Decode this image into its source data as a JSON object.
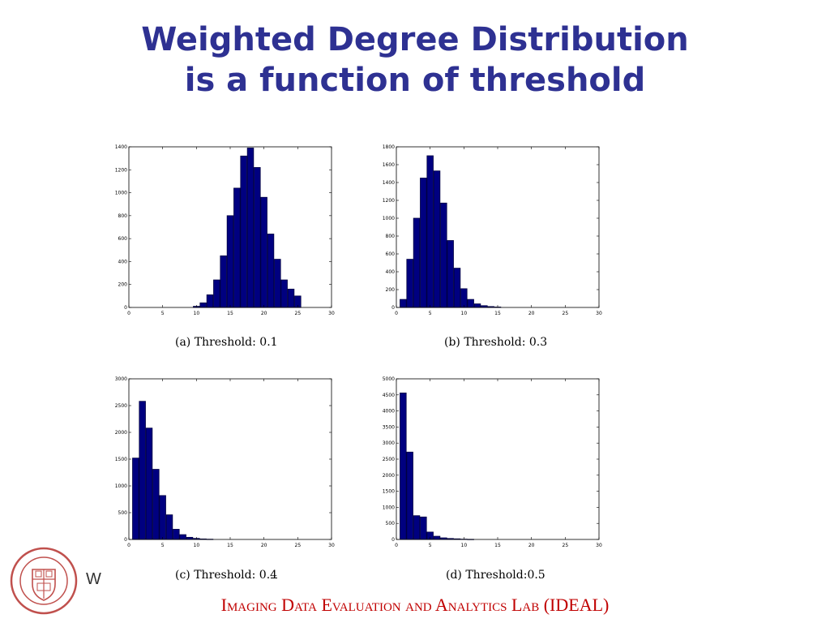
{
  "title": {
    "line1": "Weighted Degree Distribution",
    "line2": "is a function of threshold"
  },
  "footer": {
    "text": "Imaging Data Evaluation and Analytics Lab (IDEAL)"
  },
  "side_letter": "W",
  "logo": {
    "name": "university-seal",
    "color": "#c0504d"
  },
  "chart_data": [
    {
      "type": "bar",
      "caption": "(a) Threshold: 0.1",
      "xlim": [
        0,
        30
      ],
      "ylim": [
        0,
        1400
      ],
      "xticks": [
        0,
        5,
        10,
        15,
        20,
        25,
        30
      ],
      "yticks": [
        0,
        200,
        400,
        600,
        800,
        1000,
        1200,
        1400
      ],
      "x": [
        10,
        11,
        12,
        13,
        14,
        15,
        16,
        17,
        18,
        19,
        20,
        21,
        22,
        23,
        24,
        25
      ],
      "values": [
        10,
        40,
        110,
        240,
        450,
        800,
        1040,
        1320,
        1390,
        1220,
        960,
        640,
        420,
        240,
        160,
        100
      ]
    },
    {
      "type": "bar",
      "caption": "(b) Threshold: 0.3",
      "xlim": [
        0,
        30
      ],
      "ylim": [
        0,
        1800
      ],
      "xticks": [
        0,
        5,
        10,
        15,
        20,
        25,
        30
      ],
      "yticks": [
        0,
        200,
        400,
        600,
        800,
        1000,
        1200,
        1400,
        1600,
        1800
      ],
      "x": [
        1,
        2,
        3,
        4,
        5,
        6,
        7,
        8,
        9,
        10,
        11,
        12,
        13,
        14,
        15
      ],
      "values": [
        90,
        540,
        1000,
        1450,
        1700,
        1530,
        1170,
        750,
        440,
        210,
        90,
        40,
        20,
        10,
        5
      ]
    },
    {
      "type": "bar",
      "caption": "(c) Threshold: 0.4",
      "xlim": [
        0,
        30
      ],
      "ylim": [
        0,
        3000
      ],
      "xticks": [
        0,
        5,
        10,
        15,
        20,
        25,
        30
      ],
      "yticks": [
        0,
        500,
        1000,
        1500,
        2000,
        2500,
        3000
      ],
      "x": [
        1,
        2,
        3,
        4,
        5,
        6,
        7,
        8,
        9,
        10,
        11,
        12
      ],
      "values": [
        1520,
        2580,
        2080,
        1310,
        820,
        460,
        190,
        90,
        40,
        20,
        10,
        5
      ]
    },
    {
      "type": "bar",
      "caption": "(d) Threshold:0.5",
      "xlim": [
        0,
        30
      ],
      "ylim": [
        0,
        5000
      ],
      "xticks": [
        0,
        5,
        10,
        15,
        20,
        25,
        30
      ],
      "yticks": [
        0,
        500,
        1000,
        1500,
        2000,
        2500,
        3000,
        3500,
        4000,
        4500,
        5000
      ],
      "x": [
        1,
        2,
        3,
        4,
        5,
        6,
        7,
        8,
        9,
        10,
        11
      ],
      "values": [
        4560,
        2720,
        740,
        700,
        230,
        100,
        50,
        30,
        20,
        10,
        5
      ]
    }
  ]
}
